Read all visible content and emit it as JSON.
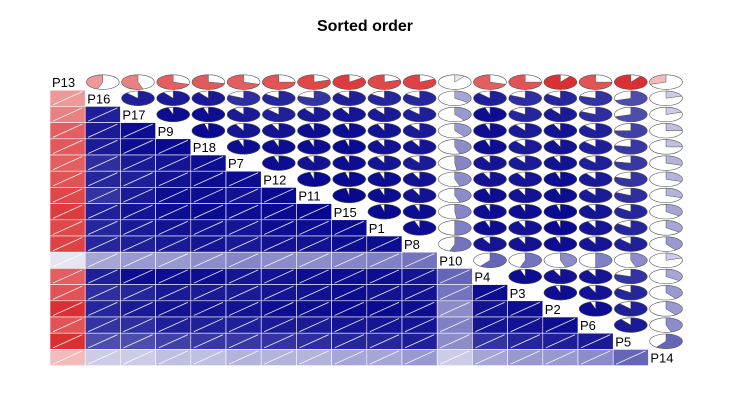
{
  "chart_data": {
    "type": "heatmap",
    "title": "Sorted order",
    "variables": [
      "P13",
      "P16",
      "P17",
      "P9",
      "P18",
      "P7",
      "P12",
      "P11",
      "P15",
      "P1",
      "P8",
      "P10",
      "P4",
      "P3",
      "P2",
      "P6",
      "P5",
      "P14"
    ],
    "lower_panel": "shade",
    "upper_panel": "pie",
    "diagonal": "variable names",
    "color_scale": {
      "negative": "#d7191c",
      "positive": "#00008b",
      "neutral": "#ffffff"
    },
    "correlations": [
      [
        1.0,
        -0.45,
        -0.55,
        -0.7,
        -0.72,
        -0.7,
        -0.75,
        -0.8,
        -0.85,
        -0.8,
        -0.82,
        0.1,
        -0.7,
        -0.75,
        -0.9,
        -0.75,
        -0.9,
        -0.3
      ],
      [
        -0.45,
        1.0,
        0.88,
        0.9,
        0.9,
        0.82,
        0.85,
        0.8,
        0.88,
        0.85,
        0.85,
        0.35,
        0.88,
        0.82,
        0.85,
        0.8,
        0.7,
        0.2
      ],
      [
        -0.55,
        0.88,
        1.0,
        0.95,
        0.95,
        0.9,
        0.88,
        0.9,
        0.92,
        0.9,
        0.88,
        0.4,
        0.95,
        0.85,
        0.9,
        0.82,
        0.7,
        0.2
      ],
      [
        -0.7,
        0.9,
        0.95,
        1.0,
        0.96,
        0.92,
        0.93,
        0.95,
        0.95,
        0.93,
        0.9,
        0.4,
        0.95,
        0.9,
        0.93,
        0.88,
        0.75,
        0.25
      ],
      [
        -0.72,
        0.9,
        0.95,
        0.96,
        1.0,
        0.95,
        0.95,
        0.95,
        0.96,
        0.93,
        0.92,
        0.45,
        0.95,
        0.9,
        0.93,
        0.88,
        0.78,
        0.25
      ],
      [
        -0.7,
        0.82,
        0.9,
        0.92,
        0.95,
        1.0,
        0.95,
        0.93,
        0.95,
        0.92,
        0.9,
        0.48,
        0.92,
        0.9,
        0.93,
        0.88,
        0.78,
        0.3
      ],
      [
        -0.75,
        0.85,
        0.88,
        0.93,
        0.95,
        0.95,
        1.0,
        0.96,
        0.96,
        0.95,
        0.93,
        0.45,
        0.93,
        0.92,
        0.95,
        0.9,
        0.8,
        0.3
      ],
      [
        -0.8,
        0.8,
        0.9,
        0.95,
        0.95,
        0.93,
        0.96,
        1.0,
        0.97,
        0.95,
        0.93,
        0.45,
        0.95,
        0.93,
        0.95,
        0.9,
        0.82,
        0.3
      ],
      [
        -0.85,
        0.88,
        0.92,
        0.95,
        0.96,
        0.95,
        0.96,
        0.97,
        1.0,
        0.96,
        0.95,
        0.48,
        0.95,
        0.95,
        0.96,
        0.92,
        0.85,
        0.35
      ],
      [
        -0.8,
        0.85,
        0.9,
        0.93,
        0.93,
        0.92,
        0.95,
        0.95,
        0.96,
        1.0,
        0.95,
        0.5,
        0.95,
        0.93,
        0.96,
        0.92,
        0.85,
        0.35
      ],
      [
        -0.82,
        0.85,
        0.88,
        0.9,
        0.92,
        0.9,
        0.93,
        0.93,
        0.95,
        0.95,
        1.0,
        0.55,
        0.92,
        0.93,
        0.95,
        0.92,
        0.88,
        0.4
      ],
      [
        0.1,
        0.35,
        0.4,
        0.4,
        0.45,
        0.48,
        0.45,
        0.45,
        0.48,
        0.5,
        0.55,
        1.0,
        0.6,
        0.55,
        0.45,
        0.5,
        0.45,
        0.2
      ],
      [
        -0.7,
        0.88,
        0.95,
        0.95,
        0.95,
        0.92,
        0.93,
        0.95,
        0.95,
        0.95,
        0.92,
        0.6,
        1.0,
        0.95,
        0.93,
        0.92,
        0.8,
        0.35
      ],
      [
        -0.75,
        0.82,
        0.85,
        0.9,
        0.9,
        0.9,
        0.92,
        0.93,
        0.95,
        0.93,
        0.93,
        0.55,
        0.95,
        1.0,
        0.95,
        0.93,
        0.85,
        0.4
      ],
      [
        -0.9,
        0.85,
        0.9,
        0.93,
        0.93,
        0.93,
        0.95,
        0.95,
        0.96,
        0.96,
        0.95,
        0.45,
        0.93,
        0.95,
        1.0,
        0.95,
        0.88,
        0.4
      ],
      [
        -0.75,
        0.8,
        0.82,
        0.88,
        0.88,
        0.88,
        0.9,
        0.9,
        0.92,
        0.92,
        0.92,
        0.5,
        0.92,
        0.93,
        0.95,
        1.0,
        0.9,
        0.45
      ],
      [
        -0.9,
        0.7,
        0.7,
        0.75,
        0.78,
        0.78,
        0.8,
        0.82,
        0.85,
        0.85,
        0.88,
        0.45,
        0.8,
        0.85,
        0.88,
        0.9,
        1.0,
        0.6
      ],
      [
        -0.3,
        0.2,
        0.2,
        0.25,
        0.25,
        0.3,
        0.3,
        0.3,
        0.35,
        0.35,
        0.4,
        0.2,
        0.35,
        0.4,
        0.4,
        0.45,
        0.6,
        1.0
      ]
    ]
  }
}
